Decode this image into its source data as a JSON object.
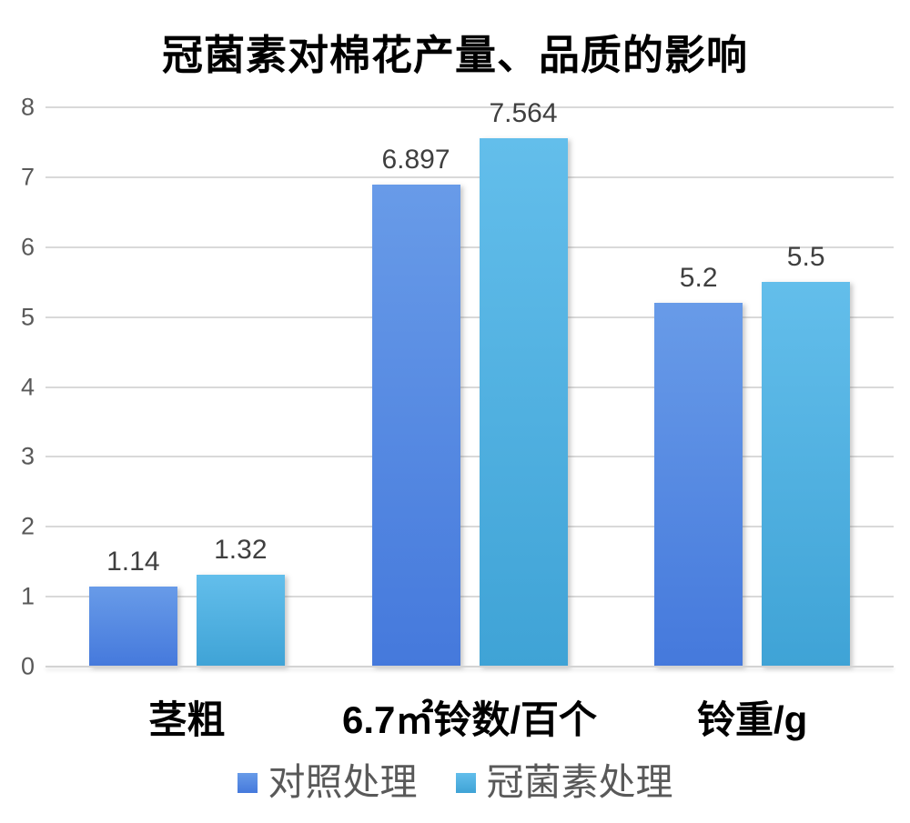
{
  "chart_data": {
    "type": "bar",
    "title": "冠菌素对棉花产量、品质的影响",
    "categories": [
      "茎粗",
      "6.7㎡铃数/百个",
      "铃重/g"
    ],
    "series": [
      {
        "name": "对照处理",
        "values": [
          1.14,
          6.897,
          5.2
        ],
        "value_labels": [
          "1.14",
          "6.897",
          "5.2"
        ],
        "color_top": "#689be8",
        "color_bottom": "#4579dc",
        "legend_color": "#5087e0"
      },
      {
        "name": "冠菌素处理",
        "values": [
          1.32,
          7.564,
          5.5
        ],
        "value_labels": [
          "1.32",
          "7.564",
          "5.5"
        ],
        "color_top": "#63beeb",
        "color_bottom": "#3fa3d6",
        "legend_color": "#4fb0e4"
      }
    ],
    "xlabel": "",
    "ylabel": "",
    "ylim": [
      0,
      8
    ],
    "yticks": [
      0,
      1,
      2,
      3,
      4,
      5,
      6,
      7,
      8
    ],
    "grid": true,
    "legend_position": "bottom"
  },
  "colors": {
    "background": "#ffffff",
    "gridline": "#d9d9d9",
    "tick_label": "#595959",
    "data_label": "#3f3f3f",
    "title": "#000000",
    "category_label": "#000000",
    "legend_text": "#595959"
  }
}
